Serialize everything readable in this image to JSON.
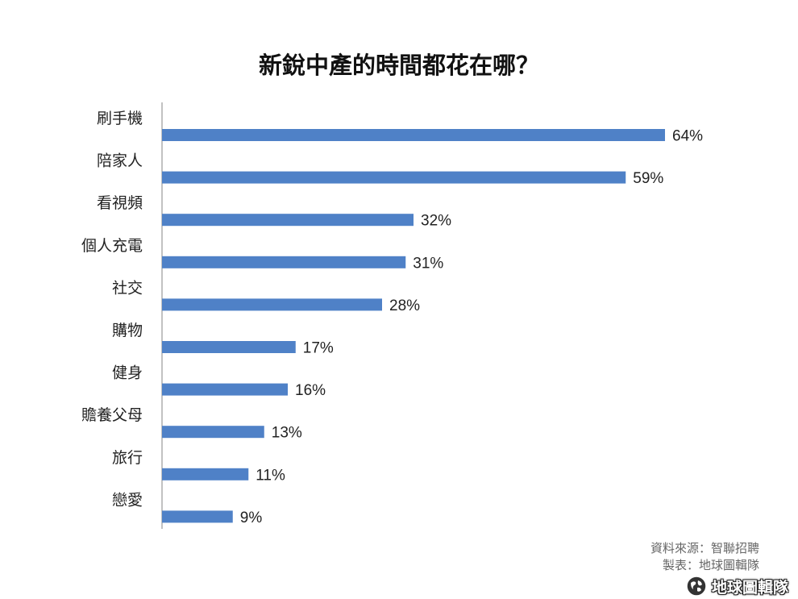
{
  "chart_data": {
    "type": "bar",
    "orientation": "horizontal",
    "title": "新銳中產的時間都花在哪？",
    "categories": [
      "刷手機",
      "陪家人",
      "看視頻",
      "個人充電",
      "社交",
      "購物",
      "健身",
      "贍養父母",
      "旅行",
      "戀愛"
    ],
    "values": [
      64,
      59,
      32,
      31,
      28,
      17,
      16,
      13,
      11,
      9
    ],
    "data_labels": [
      "64%",
      "59%",
      "32%",
      "31%",
      "28%",
      "17%",
      "16%",
      "13%",
      "11%",
      "9%"
    ],
    "bar_color": "#4f81c7",
    "xlim": [
      0,
      100
    ],
    "grid": false,
    "legend": "none"
  },
  "source": {
    "line1": "資料來源：智聯招聘",
    "line2": "製表：地球圖輯隊"
  },
  "logo": {
    "text": "地球圖輯隊",
    "icon": "globe-icon"
  }
}
